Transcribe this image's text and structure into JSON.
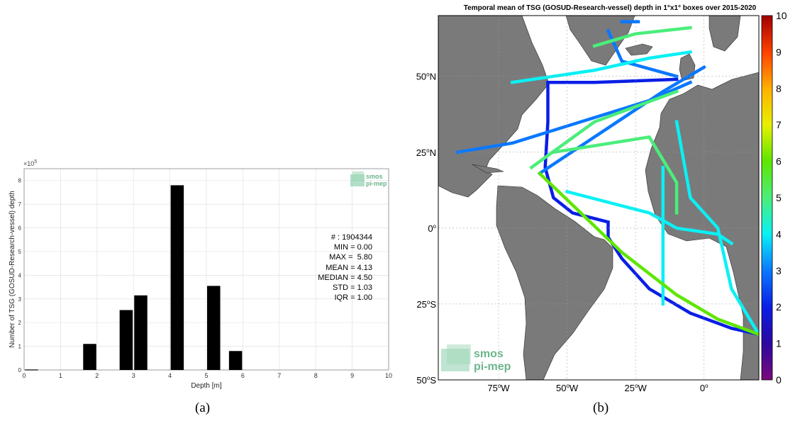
{
  "figure": {
    "captions": [
      "(a)",
      "(b)"
    ]
  },
  "histogram": {
    "ylabel": "Number of TSG (GOSUD-Research-vessel) depth",
    "xlabel": "Depth [m]",
    "exponent_label": "×10",
    "exponent_power": "5",
    "logo": [
      "smos",
      "pi-mep"
    ],
    "stats": [
      "# : 1904344",
      "MIN = 0.00",
      "MAX =  5.80",
      "MEAN = 4.13",
      "MEDIAN = 4.50",
      "STD = 1.03",
      "IQR = 1.00"
    ]
  },
  "map": {
    "title": "Temporal mean of TSG (GOSUD-Research-vessel) depth in 1°x1° boxes over 2015-2020",
    "logo": [
      "smos",
      "pi-mep"
    ],
    "lat_labels": [
      {
        "deg": "50",
        "hem": "N",
        "lat": 50
      },
      {
        "deg": "25",
        "hem": "N",
        "lat": 25
      },
      {
        "deg": "0",
        "hem": "",
        "lat": 0
      },
      {
        "deg": "25",
        "hem": "S",
        "lat": -25
      },
      {
        "deg": "50",
        "hem": "S",
        "lat": -50
      }
    ],
    "lon_labels": [
      {
        "deg": "75",
        "hem": "W",
        "lon": -75
      },
      {
        "deg": "50",
        "hem": "W",
        "lon": -50
      },
      {
        "deg": "25",
        "hem": "W",
        "lon": -25
      },
      {
        "deg": "0",
        "hem": "",
        "lon": 0
      }
    ],
    "colors": {
      "land": "#7a7a7a",
      "ocean": "#ffffff"
    }
  },
  "colorbar": {
    "ticks": [
      "0",
      "1",
      "2",
      "3",
      "4",
      "5",
      "6",
      "7",
      "8",
      "9",
      "10"
    ],
    "stops": [
      "#7a0a7a",
      "#2b08a0",
      "#0a1ee6",
      "#0a78ff",
      "#0af0f5",
      "#4aee7a",
      "#5ee600",
      "#e8f000",
      "#ffb000",
      "#ff4000",
      "#a00000"
    ]
  },
  "chart_data": [
    {
      "type": "bar",
      "title": "",
      "xlabel": "Depth [m]",
      "ylabel": "Number of TSG (GOSUD-Research-vessel) depth",
      "y_scale_note": "×10^5",
      "x": [
        0.2,
        1.8,
        2.8,
        3.2,
        4.2,
        5.2,
        5.8
      ],
      "values": [
        2000,
        110000,
        253000,
        315000,
        780000,
        355000,
        80000
      ],
      "xlim": [
        0,
        10
      ],
      "ylim": [
        0,
        850000
      ],
      "xticks": [
        0,
        1,
        2,
        3,
        4,
        5,
        6,
        7,
        8,
        9,
        10
      ],
      "yticks": [
        0,
        1,
        2,
        3,
        4,
        5,
        6,
        7,
        8
      ],
      "grid": true,
      "bar_color": "#000000"
    },
    {
      "type": "heatmap",
      "title": "Temporal mean of TSG (GOSUD-Research-vessel) depth in 1°x1° boxes over 2015-2020",
      "colorbar_range": [
        0,
        10
      ],
      "lon_range": [
        -97,
        20
      ],
      "lat_range": [
        -50,
        70
      ],
      "tracks": [
        {
          "value": 2.0,
          "points": [
            [
              -57,
              48
            ],
            [
              -57,
              35
            ],
            [
              -58,
              20
            ],
            [
              -55,
              10
            ],
            [
              -48,
              5
            ],
            [
              -35,
              2
            ],
            [
              -35,
              -3
            ],
            [
              -30,
              -10
            ],
            [
              -20,
              -20
            ],
            [
              -5,
              -28
            ],
            [
              10,
              -33
            ],
            [
              20,
              -35
            ]
          ]
        },
        {
          "value": 2.0,
          "points": [
            [
              -57,
              48
            ],
            [
              -40,
              48
            ],
            [
              -10,
              49
            ]
          ]
        },
        {
          "value": 3.2,
          "points": [
            [
              -90,
              25
            ],
            [
              -70,
              28
            ],
            [
              -45,
              35
            ],
            [
              -20,
              42
            ],
            [
              -5,
              48
            ]
          ]
        },
        {
          "value": 3.2,
          "points": [
            [
              -60,
              18
            ],
            [
              -40,
              30
            ],
            [
              -15,
              45
            ],
            [
              0,
              53
            ]
          ]
        },
        {
          "value": 3.2,
          "points": [
            [
              -35,
              65
            ],
            [
              -30,
              55
            ],
            [
              -10,
              50
            ]
          ]
        },
        {
          "value": 3.0,
          "points": [
            [
              -30,
              68
            ],
            [
              -24,
              68
            ]
          ]
        },
        {
          "value": 4.3,
          "points": [
            [
              -50,
              12
            ],
            [
              -20,
              5
            ],
            [
              -10,
              0
            ],
            [
              5,
              -2
            ],
            [
              10,
              -5
            ]
          ]
        },
        {
          "value": 4.3,
          "points": [
            [
              -15,
              20
            ],
            [
              -15,
              -20
            ],
            [
              -15,
              -25
            ]
          ]
        },
        {
          "value": 4.3,
          "points": [
            [
              -10,
              35
            ],
            [
              -5,
              10
            ],
            [
              5,
              0
            ],
            [
              10,
              -20
            ],
            [
              20,
              -35
            ]
          ]
        },
        {
          "value": 4.3,
          "points": [
            [
              -70,
              48
            ],
            [
              -40,
              52
            ],
            [
              -20,
              56
            ],
            [
              -5,
              58
            ]
          ]
        },
        {
          "value": 5.2,
          "points": [
            [
              -63,
              20
            ],
            [
              -40,
              35
            ],
            [
              -10,
              45
            ]
          ]
        },
        {
          "value": 5.2,
          "points": [
            [
              -55,
              25
            ],
            [
              -20,
              30
            ],
            [
              -10,
              15
            ],
            [
              -10,
              5
            ]
          ]
        },
        {
          "value": 5.2,
          "points": [
            [
              -40,
              60
            ],
            [
              -25,
              64
            ],
            [
              -5,
              66
            ]
          ]
        },
        {
          "value": 5.7,
          "points": [
            [
              -60,
              18
            ],
            [
              -45,
              5
            ],
            [
              -30,
              -8
            ],
            [
              -10,
              -22
            ],
            [
              5,
              -30
            ],
            [
              20,
              -35
            ]
          ]
        }
      ]
    }
  ]
}
